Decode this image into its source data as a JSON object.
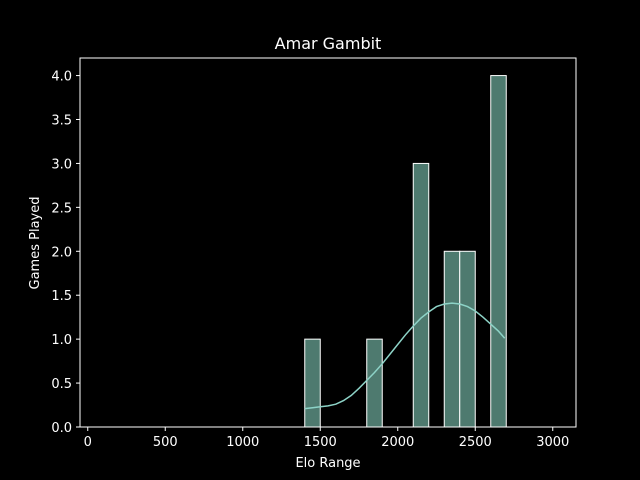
{
  "chart_data": {
    "type": "bar",
    "title": "Amar Gambit",
    "xlabel": "Elo Range",
    "ylabel": "Games Played",
    "xlim": [
      -50,
      3150
    ],
    "ylim": [
      0,
      4.2
    ],
    "xticks": [
      0,
      500,
      1000,
      1500,
      2000,
      2500,
      3000
    ],
    "yticks": [
      0.0,
      0.5,
      1.0,
      1.5,
      2.0,
      2.5,
      3.0,
      3.5,
      4.0
    ],
    "bar_width": 100,
    "bins": [
      {
        "x": 1400,
        "value": 1
      },
      {
        "x": 1800,
        "value": 1
      },
      {
        "x": 2100,
        "value": 3
      },
      {
        "x": 2300,
        "value": 2
      },
      {
        "x": 2400,
        "value": 2
      },
      {
        "x": 2600,
        "value": 4
      }
    ],
    "kde": {
      "x": [
        1400,
        1450,
        1500,
        1550,
        1600,
        1650,
        1700,
        1750,
        1800,
        1850,
        1900,
        1950,
        2000,
        2050,
        2100,
        2150,
        2200,
        2250,
        2300,
        2350,
        2400,
        2450,
        2500,
        2550,
        2600,
        2650,
        2690
      ],
      "y": [
        0.21,
        0.22,
        0.23,
        0.24,
        0.26,
        0.3,
        0.36,
        0.44,
        0.53,
        0.62,
        0.72,
        0.83,
        0.94,
        1.05,
        1.15,
        1.24,
        1.31,
        1.37,
        1.4,
        1.41,
        1.4,
        1.37,
        1.32,
        1.25,
        1.17,
        1.09,
        1.01
      ]
    },
    "colors": {
      "bar_fill": "#4e7a6f",
      "bar_edge": "#ffffff",
      "kde_line": "#8dd3c7",
      "axes": "#ffffff",
      "background": "#000000"
    },
    "grid": false
  }
}
